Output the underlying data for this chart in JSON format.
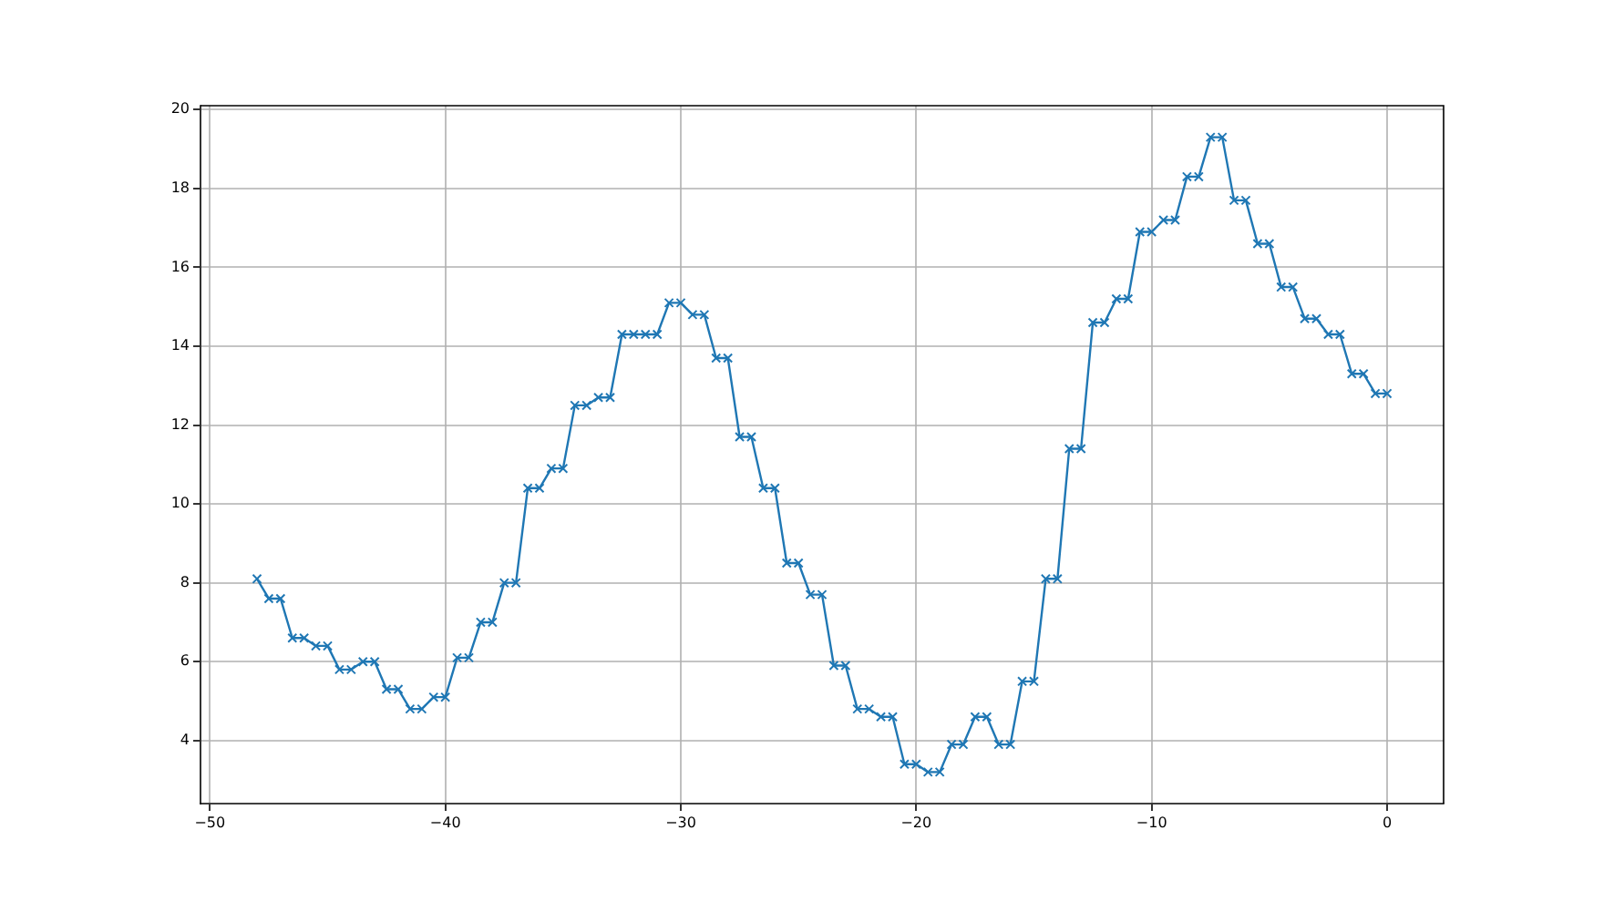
{
  "chart_data": {
    "type": "line",
    "x": [
      -48,
      -47.5,
      -47,
      -46.5,
      -46,
      -45.5,
      -45,
      -44.5,
      -44,
      -43.5,
      -43,
      -42.5,
      -42,
      -41.5,
      -41,
      -40.5,
      -40,
      -39.5,
      -39,
      -38.5,
      -38,
      -37.5,
      -37,
      -36.5,
      -36,
      -35.5,
      -35,
      -34.5,
      -34,
      -33.5,
      -33,
      -32.5,
      -32,
      -31.5,
      -31,
      -30.5,
      -30,
      -29.5,
      -29,
      -28.5,
      -28,
      -27.5,
      -27,
      -26.5,
      -26,
      -25.5,
      -25,
      -24.5,
      -24,
      -23.5,
      -23,
      -22.5,
      -22,
      -21.5,
      -21,
      -20.5,
      -20,
      -19.5,
      -19,
      -18.5,
      -18,
      -17.5,
      -17,
      -16.5,
      -16,
      -15.5,
      -15,
      -14.5,
      -14,
      -13.5,
      -13,
      -12.5,
      -12,
      -11.5,
      -11,
      -10.5,
      -10,
      -9.5,
      -9,
      -8.5,
      -8,
      -7.5,
      -7,
      -6.5,
      -6,
      -5.5,
      -5,
      -4.5,
      -4,
      -3.5,
      -3,
      -2.5,
      -2,
      -1.5,
      -1,
      -0.5,
      0
    ],
    "values": [
      8.1,
      7.6,
      7.6,
      6.6,
      6.6,
      6.4,
      6.4,
      5.8,
      5.8,
      6.0,
      6.0,
      5.3,
      5.3,
      4.8,
      4.8,
      5.1,
      5.1,
      6.1,
      6.1,
      7.0,
      7.0,
      8.0,
      8.0,
      10.4,
      10.4,
      10.9,
      10.9,
      12.5,
      12.5,
      12.7,
      12.7,
      14.3,
      14.3,
      14.3,
      14.3,
      15.1,
      15.1,
      14.8,
      14.8,
      13.7,
      13.7,
      11.7,
      11.7,
      10.4,
      10.4,
      8.5,
      8.5,
      7.7,
      7.7,
      5.9,
      5.9,
      4.8,
      4.8,
      4.6,
      4.6,
      3.4,
      3.4,
      3.2,
      3.2,
      3.9,
      3.9,
      4.6,
      4.6,
      3.9,
      3.9,
      5.5,
      5.5,
      8.1,
      8.1,
      11.4,
      11.4,
      14.6,
      14.6,
      15.2,
      15.2,
      16.9,
      16.9,
      17.2,
      17.2,
      18.3,
      18.3,
      19.3,
      19.3,
      17.7,
      17.7,
      16.6,
      16.6,
      15.5,
      15.5,
      14.7,
      14.7,
      14.3,
      14.3,
      13.3,
      13.3,
      12.8,
      12.8
    ],
    "color": "#1f77b4",
    "xlim": [
      -50.4,
      2.4
    ],
    "xticks": [
      {
        "value": -50,
        "label": "−50"
      },
      {
        "value": -40,
        "label": "−40"
      },
      {
        "value": -30,
        "label": "−30"
      },
      {
        "value": -20,
        "label": "−20"
      },
      {
        "value": -10,
        "label": "−10"
      },
      0
    ],
    "ylim": [
      2.4,
      20.1
    ],
    "yticks": [
      4,
      6,
      8,
      10,
      12,
      14,
      16,
      18,
      20
    ],
    "grid": true,
    "marker": "cross",
    "line_style": "solid"
  }
}
